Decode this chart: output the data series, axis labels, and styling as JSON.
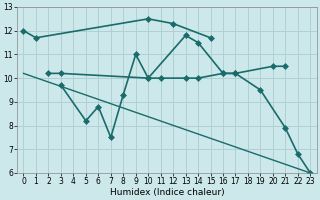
{
  "xlabel": "Humidex (Indice chaleur)",
  "xlim": [
    -0.5,
    23.5
  ],
  "ylim": [
    6,
    13
  ],
  "xticks": [
    0,
    1,
    2,
    3,
    4,
    5,
    6,
    7,
    8,
    9,
    10,
    11,
    12,
    13,
    14,
    15,
    16,
    17,
    18,
    19,
    20,
    21,
    22,
    23
  ],
  "yticks": [
    6,
    7,
    8,
    9,
    10,
    11,
    12,
    13
  ],
  "background_color": "#cce8ea",
  "grid_color": "#b0d0d3",
  "line_color": "#1a6b6b",
  "series": [
    {
      "x": [
        0,
        1,
        10,
        12,
        15
      ],
      "y": [
        12.0,
        11.7,
        12.5,
        12.3,
        11.7
      ],
      "marker": "D",
      "markersize": 3,
      "linewidth": 1.2
    },
    {
      "x": [
        2,
        3,
        10,
        11,
        13,
        14,
        16,
        17,
        20,
        21
      ],
      "y": [
        10.2,
        10.2,
        10.0,
        10.0,
        10.0,
        10.0,
        10.2,
        10.2,
        10.5,
        10.5
      ],
      "marker": "D",
      "markersize": 3,
      "linewidth": 1.2
    },
    {
      "x": [
        3,
        5,
        6,
        7,
        8,
        9,
        10,
        13,
        14,
        16,
        17,
        19,
        21,
        22,
        23
      ],
      "y": [
        9.7,
        8.2,
        8.8,
        7.5,
        9.3,
        11.0,
        10.0,
        11.8,
        11.5,
        10.2,
        10.2,
        9.5,
        7.9,
        6.8,
        6.0
      ],
      "marker": "D",
      "markersize": 3,
      "linewidth": 1.2
    },
    {
      "x": [
        0,
        23
      ],
      "y": [
        10.2,
        6.0
      ],
      "marker": null,
      "markersize": 0,
      "linewidth": 1.0
    }
  ]
}
